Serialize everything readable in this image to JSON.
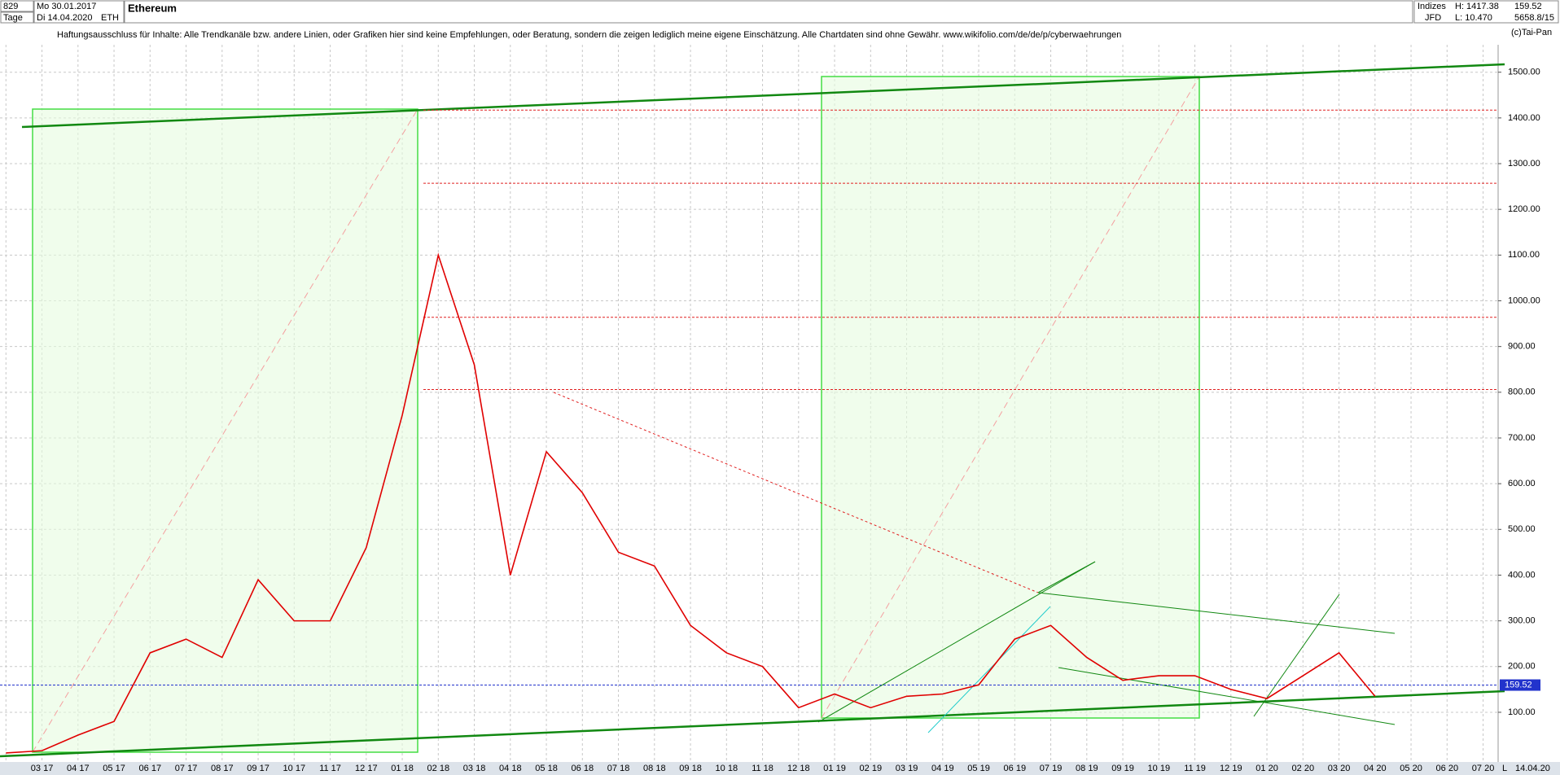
{
  "header": {
    "count": "829",
    "start_date": "Mo 30.01.2017",
    "period": "Tage",
    "end_date": "Di 14.04.2020",
    "symbol": "ETH",
    "group": "Indizes",
    "source": "JFD",
    "high": "H: 1417.38",
    "low": "L: 10.470",
    "last": "159.52",
    "volume": "5658.8/15",
    "copyright": "(c)Tai-Pan",
    "axis_mode": "L",
    "axis_date": "14.04.20",
    "disclaimer": "Haftungsausschluss für Inhalte: Alle Trendkanäle bzw. andere Linien, oder Grafiken hier sind keine Empfehlungen, oder Beratung, sondern die zeigen lediglich meine eigene Einschätzung. Alle Chartdaten sind ohne Gewähr.  www.wikifolio.com/de/de/p/cyberwaehrungen"
  },
  "chart_data": {
    "type": "line",
    "title": "Ethereum",
    "categories": [
      null,
      "03 17",
      "04 17",
      "05 17",
      "06 17",
      "07 17",
      "08 17",
      "09 17",
      "10 17",
      "11 17",
      "12 17",
      "01 18",
      "02 18",
      "03 18",
      "04 18",
      "05 18",
      "06 18",
      "07 18",
      "08 18",
      "09 18",
      "10 18",
      "11 18",
      "12 18",
      "01 19",
      "02 19",
      "03 19",
      "04 19",
      "05 19",
      "06 19",
      "07 19",
      "08 19",
      "09 19",
      "10 19",
      "11 19",
      "12 19",
      "01 20",
      "02 20",
      "03 20",
      "04 20",
      "05 20",
      "06 20",
      "07 20"
    ],
    "series": [
      {
        "name": "ETH",
        "color": "#e00000",
        "values": [
          11,
          16,
          50,
          80,
          230,
          260,
          220,
          390,
          300,
          300,
          460,
          750,
          1100,
          860,
          400,
          670,
          580,
          450,
          420,
          290,
          230,
          200,
          110,
          140,
          110,
          135,
          140,
          160,
          260,
          290,
          220,
          170,
          180,
          180,
          150,
          130,
          180,
          230,
          135,
          null,
          null,
          null
        ]
      }
    ],
    "levels": [
      1417,
      1257,
      964,
      806
    ],
    "current_price": {
      "value": 159.52,
      "label": "159.52"
    },
    "ylim": [
      10,
      1560
    ],
    "yticks": [
      {
        "value": 100,
        "label": "100.00"
      },
      {
        "value": 200,
        "label": "200.00"
      },
      {
        "value": 300,
        "label": "300.00"
      },
      {
        "value": 400,
        "label": "400.00"
      },
      {
        "value": 500,
        "label": "500.00"
      },
      {
        "value": 600,
        "label": "600.00"
      },
      {
        "value": 700,
        "label": "700.00"
      },
      {
        "value": 800,
        "label": "800.00"
      },
      {
        "value": 900,
        "label": "900.00"
      },
      {
        "value": 1000,
        "label": "1000.00"
      },
      {
        "value": 1100,
        "label": "1100.00"
      },
      {
        "value": 1200,
        "label": "1200.00"
      },
      {
        "value": 1300,
        "label": "1300.00"
      },
      {
        "value": 1400,
        "label": "1400.00"
      },
      {
        "value": 1500,
        "label": "1500.00"
      }
    ],
    "grid": true
  }
}
